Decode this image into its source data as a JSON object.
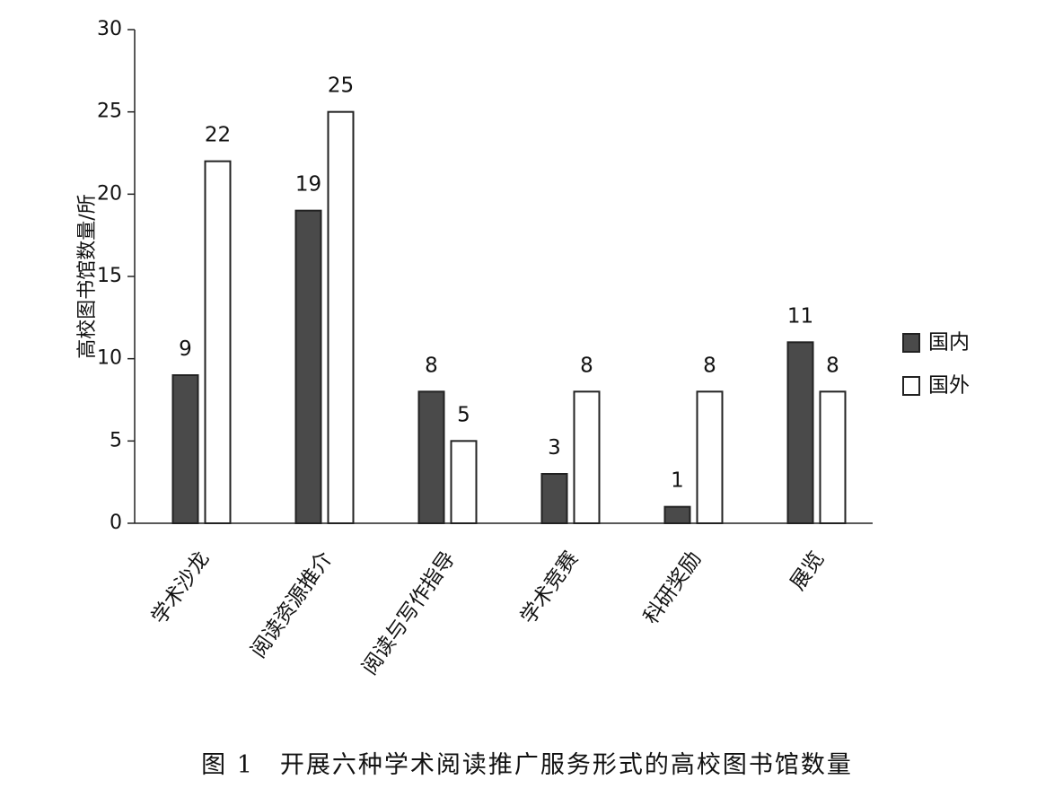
{
  "figure": {
    "caption": "图 1　开展六种学术阅读推广服务形式的高校图书馆数量"
  },
  "colors": {
    "domestic": "#4a4a4a",
    "foreign": "#ffffff",
    "axis": "#222222",
    "text": "#111111"
  },
  "chart_data": {
    "type": "bar",
    "title": "",
    "xlabel": "",
    "ylabel": "高校图书馆数量/所",
    "ylim": [
      0,
      30
    ],
    "yticks": [
      0,
      5,
      10,
      15,
      20,
      25,
      30
    ],
    "grid": false,
    "legend_position": "right",
    "categories": [
      "学术沙龙",
      "阅读资源推介",
      "阅读与写作指导",
      "学术竞赛",
      "科研奖励",
      "展览"
    ],
    "series": [
      {
        "name": "国内",
        "values": [
          9,
          19,
          8,
          3,
          1,
          11
        ]
      },
      {
        "name": "国外",
        "values": [
          22,
          25,
          5,
          8,
          8,
          8
        ]
      }
    ]
  }
}
